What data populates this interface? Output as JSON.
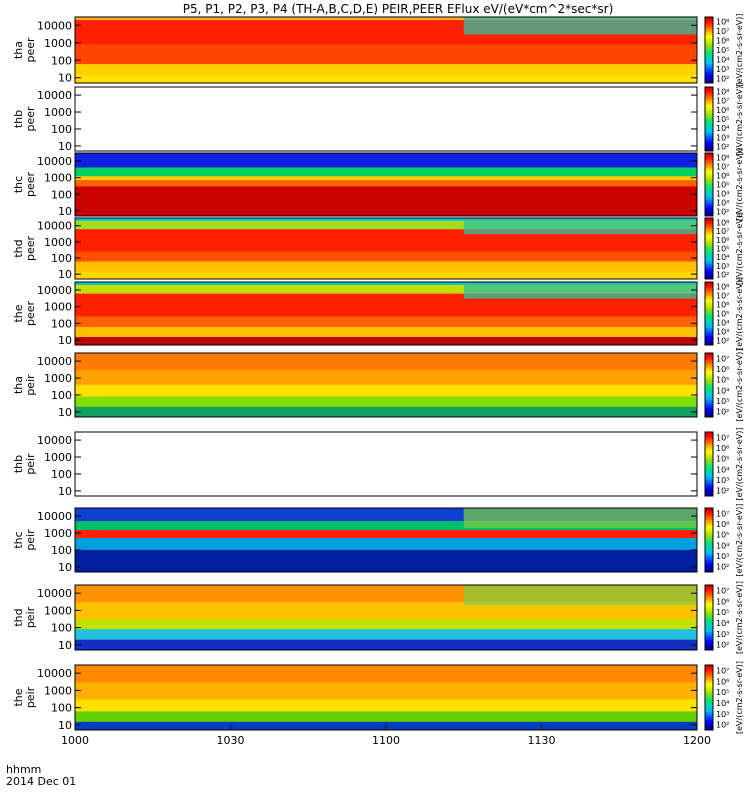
{
  "title": "P5, P1, P2, P3, P4 (TH-A,B,C,D,E) PEIR,PEER EFlux eV/(eV*cm^2*sec*sr)",
  "chart_data": {
    "type": "heatmap",
    "title": "P5, P1, P2, P3, P4 (TH-A,B,C,D,E) PEIR,PEER EFlux eV/(eV*cm^2*sec*sr)",
    "x_tick_labels": [
      "1000",
      "1030",
      "1100",
      "1130",
      "1200"
    ],
    "x_ticks_minutes": [
      0,
      30,
      60,
      90,
      120
    ],
    "x_range_minutes": [
      0,
      120
    ],
    "x_footer": [
      "hhmm",
      "2014 Dec 01"
    ],
    "y_scale": "log",
    "y_tick_labels": [
      "10",
      "100",
      "1000",
      "10000"
    ],
    "colorbar_label": "[eV/(cm2-s-sr-eV)]",
    "colorbar_tick_labels_electron": [
      "10^2",
      "10^3",
      "10^4",
      "10^5",
      "10^6",
      "10^7",
      "10^8"
    ],
    "colorbar_tick_labels_ion": [
      "10^2",
      "10^3",
      "10^4",
      "10^5",
      "10^6",
      "10^7"
    ],
    "panels": [
      {
        "probe": "tha",
        "species": "peer",
        "has_data": true,
        "profile": "tha_e",
        "colorbar": "electron"
      },
      {
        "probe": "thb",
        "species": "peer",
        "has_data": false,
        "profile": "empty",
        "colorbar": "electron"
      },
      {
        "probe": "thc",
        "species": "peer",
        "has_data": true,
        "profile": "thc_e",
        "colorbar": "electron"
      },
      {
        "probe": "thd",
        "species": "peer",
        "has_data": true,
        "profile": "thd_e",
        "colorbar": "electron"
      },
      {
        "probe": "the",
        "species": "peer",
        "has_data": true,
        "profile": "the_e",
        "colorbar": "electron"
      },
      {
        "probe": "tha",
        "species": "peir",
        "has_data": true,
        "profile": "tha_i",
        "colorbar": "ion"
      },
      {
        "probe": "thb",
        "species": "peir",
        "has_data": false,
        "profile": "empty",
        "colorbar": "ion"
      },
      {
        "probe": "thc",
        "species": "peir",
        "has_data": true,
        "profile": "thc_i",
        "colorbar": "ion"
      },
      {
        "probe": "thd",
        "species": "peir",
        "has_data": true,
        "profile": "thd_i",
        "colorbar": "ion"
      },
      {
        "probe": "the",
        "species": "peir",
        "has_data": true,
        "profile": "the_i",
        "colorbar": "ion"
      }
    ]
  }
}
